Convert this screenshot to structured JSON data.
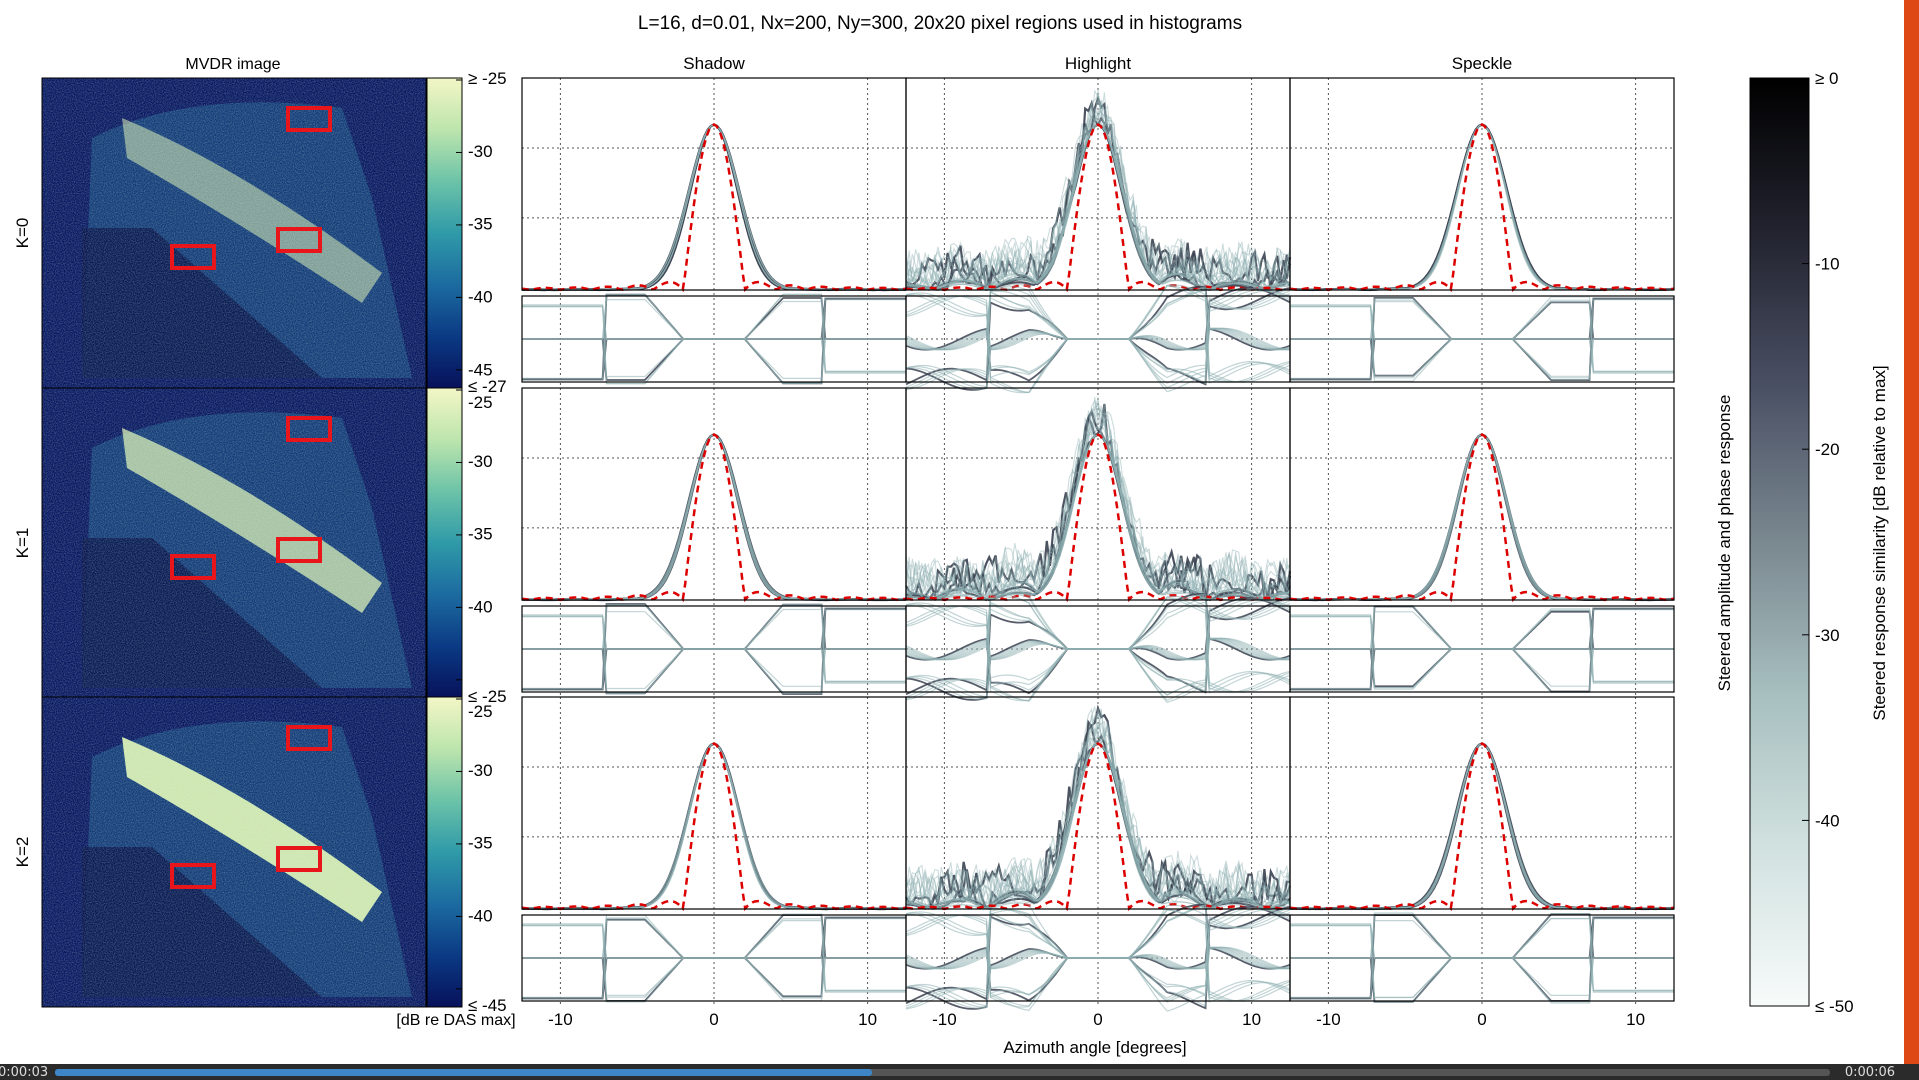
{
  "chart_data": {
    "type": "line",
    "title": "L=16, d=0.01, Nx=200, Ny=300, 20x20 pixel regions used in histograms",
    "image_column_title": "MVDR image",
    "region_titles": [
      "Shadow",
      "Highlight",
      "Speckle"
    ],
    "row_labels": [
      "K=0",
      "K=1",
      "K=2"
    ],
    "xlabel": "Azimuth angle [degrees]",
    "x_ticks": [
      "-10",
      "0",
      "10"
    ],
    "xlim": [
      -12.5,
      12.5
    ],
    "image_colorbar": {
      "label": "[dB re DAS max]",
      "range": [
        -45,
        -25
      ],
      "row_ticks": [
        [
          "≥ -25",
          "-30",
          "-35",
          "-40",
          "-45",
          "≤ -27"
        ],
        [
          "-25",
          "-30",
          "-35",
          "-40",
          "≤ -25"
        ],
        [
          "-25",
          "-30",
          "-35",
          "-40",
          "≤ -45"
        ]
      ],
      "colors": [
        "#07115a",
        "#0b3a84",
        "#1c6ba0",
        "#2f9aa8",
        "#6cc3a8",
        "#bde5ad",
        "#f3f6c6"
      ]
    },
    "similarity_colorbar": {
      "label": "Steered response similarity [dB relative to max]",
      "ticks": [
        "≥ 0",
        "-10",
        "-20",
        "-30",
        "-40",
        "≤ -50"
      ],
      "range": [
        -50,
        0
      ],
      "colors": [
        "#000000",
        "#22232f",
        "#4a5064",
        "#7a8890",
        "#a8c0c0",
        "#d2e2e0",
        "#f7fbfa"
      ]
    },
    "side_label": "Steered amplitude and phase response",
    "series": [
      {
        "name": "Steered amplitude response",
        "style": "translucent bundle"
      },
      {
        "name": "Reference beam pattern",
        "style": "red dashed"
      }
    ],
    "mainlobe_halfwidth_deg": {
      "steered": 3.6,
      "reference": 2.0
    },
    "sidelobe_peaks_deg": [
      -10.5,
      -7.0,
      7.0,
      10.5
    ],
    "phase_levels": [
      -1,
      0,
      1
    ],
    "region_boxes_note": "Red boxes in MVDR images mark the 20x20 pixel regions"
  },
  "player": {
    "elapsed": "0:00:03",
    "total": "0:00:06",
    "progress": 0.46
  },
  "colors": {
    "red": "#dd0000",
    "bundle_dark": "#3a4150",
    "bundle_light": "#8fb0b2"
  }
}
